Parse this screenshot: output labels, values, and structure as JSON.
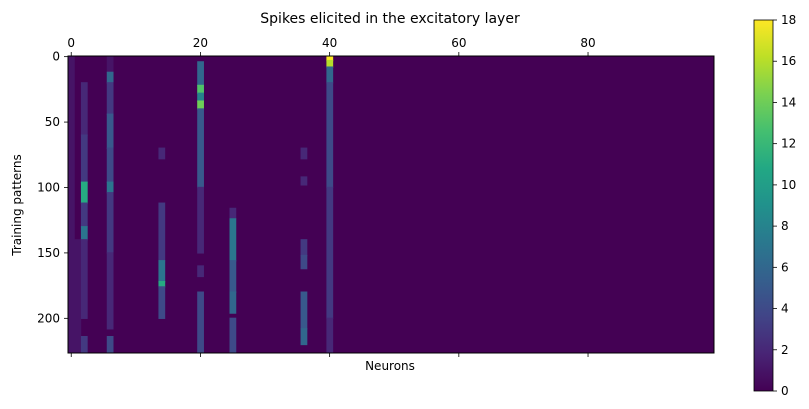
{
  "chart_data": {
    "type": "heatmap",
    "title": "Spikes elicited in the excitatory layer",
    "xlabel": "Neurons",
    "ylabel": "Training patterns",
    "x_ticks_top": [
      0,
      20,
      40,
      60,
      80
    ],
    "x_ticks_bottom_labels": false,
    "y_ticks": [
      0,
      50,
      100,
      150,
      200
    ],
    "xlim": [
      -0.5,
      99.5
    ],
    "ylim": [
      226.5,
      -0.5
    ],
    "colormap": "viridis",
    "colorbar": {
      "min": 0,
      "max": 18,
      "ticks": [
        0,
        2,
        4,
        6,
        8,
        10,
        12,
        14,
        16,
        18
      ]
    },
    "background_value": 0,
    "columns": [
      {
        "neuron": 0,
        "segments": [
          [
            0,
            226,
            1
          ]
        ]
      },
      {
        "neuron": 1,
        "segments": [
          [
            140,
            226,
            1
          ]
        ]
      },
      {
        "neuron": 2,
        "segments": [
          [
            20,
            60,
            2
          ],
          [
            60,
            96,
            3
          ],
          [
            96,
            112,
            11
          ],
          [
            112,
            130,
            3
          ],
          [
            130,
            140,
            7
          ],
          [
            140,
            200,
            2
          ],
          [
            214,
            226,
            3
          ]
        ]
      },
      {
        "neuron": 6,
        "segments": [
          [
            0,
            12,
            1
          ],
          [
            12,
            20,
            6
          ],
          [
            20,
            44,
            3
          ],
          [
            44,
            70,
            5
          ],
          [
            70,
            96,
            4
          ],
          [
            96,
            104,
            7
          ],
          [
            104,
            150,
            3
          ],
          [
            150,
            208,
            2
          ],
          [
            214,
            226,
            4
          ]
        ]
      },
      {
        "neuron": 14,
        "segments": [
          [
            70,
            78,
            2
          ],
          [
            112,
            156,
            3
          ],
          [
            156,
            172,
            7
          ],
          [
            172,
            176,
            11
          ],
          [
            176,
            200,
            4
          ]
        ]
      },
      {
        "neuron": 20,
        "segments": [
          [
            4,
            22,
            6
          ],
          [
            22,
            28,
            13
          ],
          [
            28,
            34,
            8
          ],
          [
            34,
            40,
            14
          ],
          [
            40,
            100,
            5
          ],
          [
            100,
            150,
            2
          ],
          [
            160,
            168,
            2
          ],
          [
            180,
            226,
            4
          ]
        ]
      },
      {
        "neuron": 25,
        "segments": [
          [
            116,
            124,
            2
          ],
          [
            124,
            156,
            7
          ],
          [
            156,
            180,
            5
          ],
          [
            180,
            196,
            6
          ],
          [
            200,
            226,
            4
          ]
        ]
      },
      {
        "neuron": 36,
        "segments": [
          [
            70,
            78,
            2
          ],
          [
            92,
            98,
            2
          ],
          [
            140,
            152,
            3
          ],
          [
            152,
            162,
            4
          ],
          [
            180,
            208,
            5
          ],
          [
            208,
            220,
            6
          ]
        ]
      },
      {
        "neuron": 40,
        "segments": [
          [
            0,
            3,
            18
          ],
          [
            3,
            8,
            16
          ],
          [
            8,
            20,
            6
          ],
          [
            20,
            100,
            4
          ],
          [
            100,
            200,
            3
          ],
          [
            200,
            226,
            2
          ]
        ]
      }
    ]
  }
}
